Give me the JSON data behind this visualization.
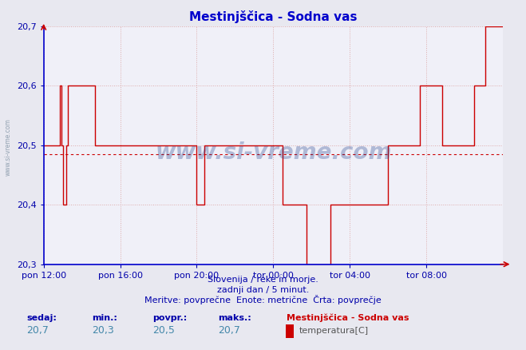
{
  "title": "Mestinjščica - Sodna vas",
  "subtitle1": "Slovenija / reke in morje.",
  "subtitle2": "zadnji dan / 5 minut.",
  "subtitle3": "Meritve: povprečne  Enote: metrične  Črta: povprečje",
  "ylim": [
    20.3,
    20.7
  ],
  "yticks": [
    20.3,
    20.4,
    20.5,
    20.6,
    20.7
  ],
  "ytick_labels": [
    "20,3",
    "20,4",
    "20,5",
    "20,6",
    "20,7"
  ],
  "xtick_labels": [
    "pon 12:00",
    "pon 16:00",
    "pon 20:00",
    "tor 00:00",
    "tor 04:00",
    "tor 08:00"
  ],
  "xtick_positions": [
    0.0,
    0.1667,
    0.3333,
    0.5,
    0.6667,
    0.8333
  ],
  "avg_line": 20.485,
  "line_color": "#cc0000",
  "avg_line_color": "#cc0000",
  "grid_color": "#ddaaaa",
  "background_color": "#e8e8f0",
  "plot_bg_color": "#f0f0f8",
  "title_color": "#0000cc",
  "spine_color": "#0000cc",
  "axis_arrow_color": "#cc0000",
  "tick_color": "#0000aa",
  "subtitle_color": "#0000aa",
  "footer_label_color": "#0000aa",
  "footer_value_color": "#4488aa",
  "legend_title_color": "#cc0000",
  "legend_text_color": "#555555",
  "sedaj_label": "sedaj:",
  "min_label": "min.:",
  "povpr_label": "povpr.:",
  "maks_label": "maks.:",
  "sedaj": "20,7",
  "min_val": "20,3",
  "povpr_val": "20,5",
  "maks_val": "20,7",
  "legend_title": "Mestinjščica - Sodna vas",
  "legend_item": "temperatura[C]",
  "watermark_text": "www.si-vreme.com",
  "sidewatermark": "www.si-vreme.com",
  "data_y": [
    20.5,
    20.5,
    20.5,
    20.5,
    20.5,
    20.5,
    20.5,
    20.5,
    20.5,
    20.5,
    20.6,
    20.5,
    20.4,
    20.4,
    20.5,
    20.6,
    20.6,
    20.6,
    20.6,
    20.6,
    20.6,
    20.6,
    20.6,
    20.6,
    20.6,
    20.6,
    20.6,
    20.6,
    20.6,
    20.6,
    20.6,
    20.6,
    20.5,
    20.5,
    20.5,
    20.5,
    20.5,
    20.5,
    20.5,
    20.5,
    20.5,
    20.5,
    20.5,
    20.5,
    20.5,
    20.5,
    20.5,
    20.5,
    20.5,
    20.5,
    20.5,
    20.5,
    20.5,
    20.5,
    20.5,
    20.5,
    20.5,
    20.5,
    20.5,
    20.5,
    20.5,
    20.5,
    20.5,
    20.5,
    20.5,
    20.5,
    20.5,
    20.5,
    20.5,
    20.5,
    20.5,
    20.5,
    20.5,
    20.5,
    20.5,
    20.5,
    20.5,
    20.5,
    20.5,
    20.5,
    20.5,
    20.5,
    20.5,
    20.5,
    20.5,
    20.5,
    20.5,
    20.5,
    20.5,
    20.5,
    20.5,
    20.5,
    20.5,
    20.5,
    20.5,
    20.5,
    20.4,
    20.4,
    20.4,
    20.4,
    20.4,
    20.5,
    20.5,
    20.5,
    20.5,
    20.5,
    20.5,
    20.5,
    20.5,
    20.5,
    20.5,
    20.5,
    20.5,
    20.5,
    20.5,
    20.5,
    20.5,
    20.5,
    20.5,
    20.5,
    20.5,
    20.5,
    20.5,
    20.5,
    20.5,
    20.5,
    20.5,
    20.5,
    20.5,
    20.5,
    20.5,
    20.5,
    20.5,
    20.5,
    20.5,
    20.5,
    20.5,
    20.5,
    20.5,
    20.5,
    20.5,
    20.5,
    20.5,
    20.5,
    20.5,
    20.5,
    20.5,
    20.5,
    20.5,
    20.5,
    20.4,
    20.4,
    20.4,
    20.4,
    20.4,
    20.4,
    20.4,
    20.4,
    20.4,
    20.4,
    20.4,
    20.4,
    20.4,
    20.4,
    20.4,
    20.3,
    20.3,
    20.3,
    20.3,
    20.3,
    20.3,
    20.3,
    20.3,
    20.3,
    20.3,
    20.3,
    20.3,
    20.3,
    20.3,
    20.3,
    20.4,
    20.4,
    20.4,
    20.4,
    20.4,
    20.4,
    20.4,
    20.4,
    20.4,
    20.4,
    20.4,
    20.4,
    20.4,
    20.4,
    20.4,
    20.4,
    20.4,
    20.4,
    20.4,
    20.4,
    20.4,
    20.4,
    20.4,
    20.4,
    20.4,
    20.4,
    20.4,
    20.4,
    20.4,
    20.4,
    20.4,
    20.4,
    20.4,
    20.4,
    20.4,
    20.4,
    20.5,
    20.5,
    20.5,
    20.5,
    20.5,
    20.5,
    20.5,
    20.5,
    20.5,
    20.5,
    20.5,
    20.5,
    20.5,
    20.5,
    20.5,
    20.5,
    20.5,
    20.5,
    20.5,
    20.5,
    20.6,
    20.6,
    20.6,
    20.6,
    20.6,
    20.6,
    20.6,
    20.6,
    20.6,
    20.6,
    20.6,
    20.6,
    20.6,
    20.6,
    20.5,
    20.5,
    20.5,
    20.5,
    20.5,
    20.5,
    20.5,
    20.5,
    20.5,
    20.5,
    20.5,
    20.5,
    20.5,
    20.5,
    20.5,
    20.5,
    20.5,
    20.5,
    20.5,
    20.5,
    20.6,
    20.6,
    20.6,
    20.6,
    20.6,
    20.6,
    20.6,
    20.7,
    20.7,
    20.7,
    20.7,
    20.7,
    20.7,
    20.7,
    20.7,
    20.7,
    20.7,
    20.7,
    20.7
  ]
}
